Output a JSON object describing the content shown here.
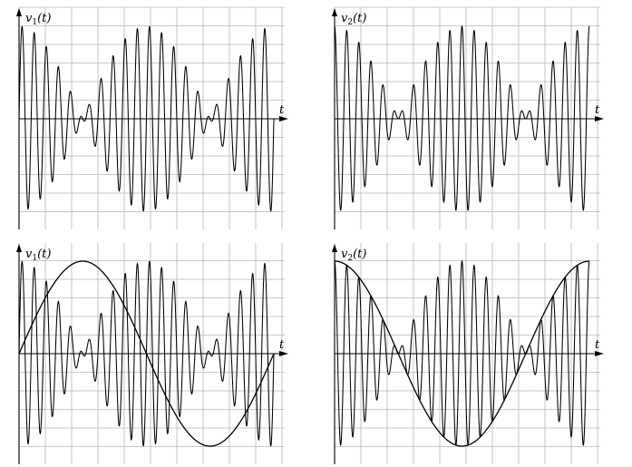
{
  "chart_data": [
    {
      "type": "line",
      "panel": "top-left",
      "ylabel": "v",
      "ylabel_sub": "1",
      "ylabel_arg": "(t)",
      "xlabel": "t",
      "grid": true,
      "xlim": [
        0,
        1
      ],
      "ylim": [
        -1.2,
        1.2
      ],
      "series": [
        {
          "kind": "signal",
          "formula": "(sin(2*pi*20*t)+sin(2*pi*22*t))/2"
        }
      ]
    },
    {
      "type": "line",
      "panel": "top-right",
      "ylabel": "v",
      "ylabel_sub": "2",
      "ylabel_arg": "(t)",
      "xlabel": "t",
      "grid": true,
      "xlim": [
        0,
        1
      ],
      "ylim": [
        -1.2,
        1.2
      ],
      "series": [
        {
          "kind": "signal",
          "formula": "(cos(2*pi*20*t)+cos(2*pi*22*t))/2"
        }
      ]
    },
    {
      "type": "line",
      "panel": "bottom-left",
      "ylabel": "v",
      "ylabel_sub": "1",
      "ylabel_arg": "(t)",
      "xlabel": "t",
      "grid": true,
      "xlim": [
        0,
        1
      ],
      "ylim": [
        -1.2,
        1.2
      ],
      "series": [
        {
          "kind": "signal",
          "formula": "(sin(2*pi*20*t)+sin(2*pi*22*t))/2"
        },
        {
          "kind": "envelope",
          "formula": "sin(2*pi*t)"
        }
      ]
    },
    {
      "type": "line",
      "panel": "bottom-right",
      "ylabel": "v",
      "ylabel_sub": "2",
      "ylabel_arg": "(t)",
      "xlabel": "t",
      "grid": true,
      "xlim": [
        0,
        1
      ],
      "ylim": [
        -1.2,
        1.2
      ],
      "series": [
        {
          "kind": "signal",
          "formula": "(cos(2*pi*20*t)+cos(2*pi*22*t))/2"
        },
        {
          "kind": "envelope",
          "formula": "cos(2*pi*t)"
        }
      ]
    }
  ]
}
